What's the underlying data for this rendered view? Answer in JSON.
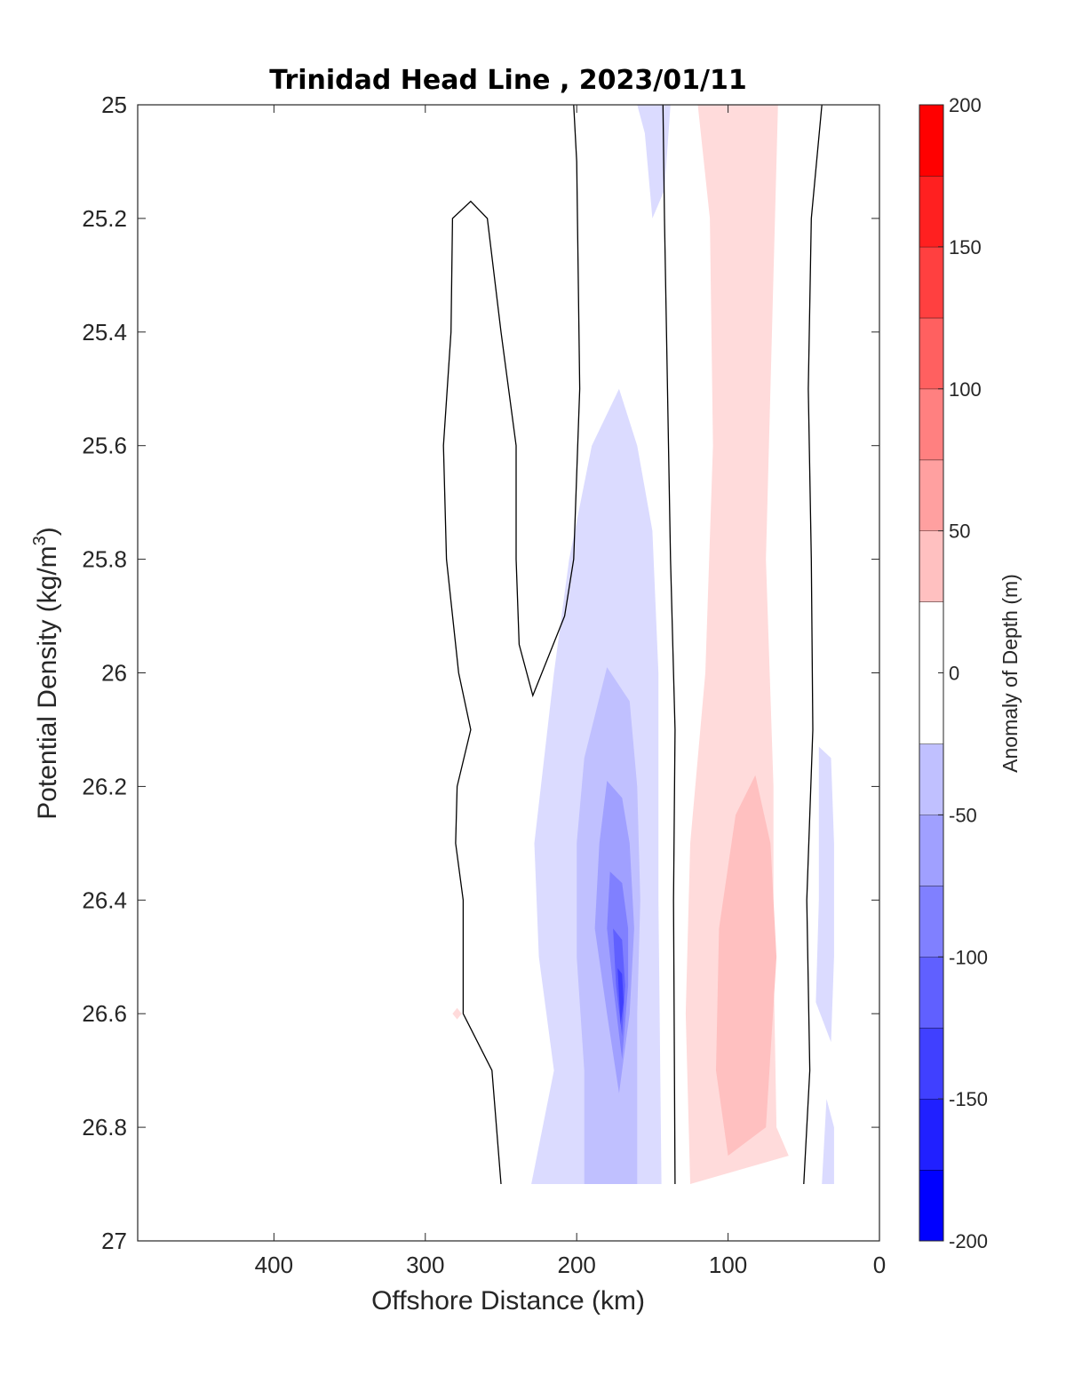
{
  "chart_data": {
    "type": "contour",
    "title": "Trinidad Head Line , 2023/01/11",
    "xlabel": "Offshore Distance (km)",
    "ylabel_main": "Potential Density (kg/m",
    "ylabel_sup": "3",
    "ylabel_close": ")",
    "colorbar_label": "Anomaly of Depth (m)",
    "xlim": [
      490,
      0
    ],
    "ylim": [
      25,
      27
    ],
    "x_reversed": true,
    "y_reversed": true,
    "xticks": [
      400,
      300,
      200,
      100,
      0
    ],
    "yticks": [
      25,
      25.2,
      25.4,
      25.6,
      25.8,
      26,
      26.2,
      26.4,
      26.6,
      26.8,
      27
    ],
    "ytick_labels": [
      "25",
      "25.2",
      "25.4",
      "25.6",
      "25.8",
      "26",
      "26.2",
      "26.4",
      "26.6",
      "26.8",
      "27"
    ],
    "colorbar": {
      "levels": [
        -200,
        -175,
        -150,
        -125,
        -100,
        -75,
        -50,
        -25,
        25,
        50,
        75,
        100,
        125,
        150,
        175,
        200
      ],
      "colors": [
        "#0000ff",
        "#2020ff",
        "#4040ff",
        "#6060ff",
        "#8080ff",
        "#a0a0ff",
        "#c0c0ff",
        "#dbdbff",
        "#ffffff",
        "#ffdbdb",
        "#ffc0c0",
        "#ffa0a0",
        "#ff8080",
        "#ff6060",
        "#ff4040",
        "#ff2020",
        "#ff0000"
      ],
      "band_edges": [
        -200,
        -175,
        -150,
        -125,
        -100,
        -75,
        -50,
        -25,
        25,
        50,
        75,
        100,
        125,
        150,
        175,
        200
      ],
      "ticks": [
        200,
        150,
        100,
        50,
        0,
        -50,
        -100,
        -150,
        -200
      ],
      "tick_labels": [
        "200",
        "150",
        "100",
        "50",
        "0",
        "-50",
        "-100",
        "-150",
        "-200"
      ]
    },
    "filled_regions": [
      {
        "level": -25,
        "color": "#dbdbff",
        "points": [
          [
            160,
            25
          ],
          [
            138,
            25
          ],
          [
            142,
            25.15
          ],
          [
            150,
            25.2
          ],
          [
            155,
            25.05
          ]
        ]
      },
      {
        "level": -25,
        "color": "#dbdbff",
        "points": [
          [
            172,
            25.5
          ],
          [
            160,
            25.6
          ],
          [
            150,
            25.75
          ],
          [
            146,
            26.0
          ],
          [
            146,
            26.4
          ],
          [
            144,
            26.9
          ],
          [
            230,
            26.9
          ],
          [
            215,
            26.7
          ],
          [
            225,
            26.5
          ],
          [
            228,
            26.3
          ],
          [
            215,
            26.0
          ],
          [
            205,
            25.8
          ],
          [
            190,
            25.6
          ]
        ]
      },
      {
        "level": -25,
        "color": "#dbdbff",
        "points": [
          [
            40,
            26.13
          ],
          [
            32,
            26.15
          ],
          [
            30,
            26.3
          ],
          [
            30,
            26.5
          ],
          [
            32,
            26.65
          ],
          [
            42,
            26.58
          ],
          [
            40,
            26.4
          ]
        ]
      },
      {
        "level": -25,
        "color": "#dbdbff",
        "points": [
          [
            35,
            26.75
          ],
          [
            30,
            26.8
          ],
          [
            30,
            26.9
          ],
          [
            38,
            26.9
          ]
        ]
      },
      {
        "level": -50,
        "color": "#c0c0ff",
        "points": [
          [
            180,
            25.99
          ],
          [
            165,
            26.05
          ],
          [
            160,
            26.2
          ],
          [
            158,
            26.4
          ],
          [
            160,
            26.6
          ],
          [
            160,
            26.9
          ],
          [
            195,
            26.9
          ],
          [
            195,
            26.7
          ],
          [
            200,
            26.5
          ],
          [
            200,
            26.3
          ],
          [
            195,
            26.15
          ]
        ]
      },
      {
        "level": -75,
        "color": "#a0a0ff",
        "points": [
          [
            180,
            26.19
          ],
          [
            170,
            26.22
          ],
          [
            165,
            26.3
          ],
          [
            162,
            26.45
          ],
          [
            165,
            26.6
          ],
          [
            172,
            26.74
          ],
          [
            180,
            26.6
          ],
          [
            188,
            26.45
          ],
          [
            185,
            26.3
          ]
        ]
      },
      {
        "level": -100,
        "color": "#8080ff",
        "points": [
          [
            178,
            26.35
          ],
          [
            170,
            26.37
          ],
          [
            166,
            26.45
          ],
          [
            166,
            26.55
          ],
          [
            170,
            26.68
          ],
          [
            176,
            26.55
          ],
          [
            180,
            26.45
          ]
        ]
      },
      {
        "level": -125,
        "color": "#6060ff",
        "points": [
          [
            176,
            26.45
          ],
          [
            170,
            26.47
          ],
          [
            168,
            26.55
          ],
          [
            170,
            26.64
          ],
          [
            174,
            26.55
          ]
        ]
      },
      {
        "level": -150,
        "color": "#4040ff",
        "points": [
          [
            173,
            26.52
          ],
          [
            170,
            26.53
          ],
          [
            169,
            26.58
          ],
          [
            171,
            26.62
          ]
        ]
      },
      {
        "level": 25,
        "color": "#ffdbdb",
        "points": [
          [
            120,
            25
          ],
          [
            67,
            25
          ],
          [
            70,
            25.3
          ],
          [
            75,
            25.8
          ],
          [
            70,
            26.2
          ],
          [
            70,
            26.5
          ],
          [
            68,
            26.8
          ],
          [
            60,
            26.85
          ],
          [
            125,
            26.9
          ],
          [
            128,
            26.6
          ],
          [
            125,
            26.3
          ],
          [
            115,
            26.0
          ],
          [
            110,
            25.6
          ],
          [
            112,
            25.2
          ]
        ]
      },
      {
        "level": 25,
        "color": "#ffdbdb",
        "points": [
          [
            282,
            26.6
          ],
          [
            279,
            26.59
          ],
          [
            276,
            26.6
          ],
          [
            279,
            26.61
          ]
        ]
      },
      {
        "level": 50,
        "color": "#ffc0c0",
        "points": [
          [
            82,
            26.18
          ],
          [
            95,
            26.25
          ],
          [
            106,
            26.45
          ],
          [
            108,
            26.7
          ],
          [
            100,
            26.85
          ],
          [
            75,
            26.8
          ],
          [
            68,
            26.5
          ],
          [
            72,
            26.3
          ]
        ]
      }
    ],
    "contour_lines": [
      {
        "level": 0,
        "points": [
          [
            202,
            25
          ],
          [
            200,
            25.1
          ],
          [
            198,
            25.5
          ],
          [
            202,
            25.8
          ],
          [
            208,
            25.9
          ],
          [
            229,
            26.04
          ],
          [
            238,
            25.95
          ],
          [
            240,
            25.8
          ],
          [
            240,
            25.6
          ],
          [
            250,
            25.4
          ],
          [
            259,
            25.2
          ],
          [
            270,
            25.17
          ],
          [
            282,
            25.2
          ],
          [
            283,
            25.4
          ],
          [
            288,
            25.6
          ],
          [
            286,
            25.8
          ],
          [
            278,
            26.0
          ],
          [
            270,
            26.1
          ],
          [
            279,
            26.2
          ],
          [
            280,
            26.3
          ],
          [
            275,
            26.4
          ],
          [
            275,
            26.6
          ],
          [
            256,
            26.7
          ],
          [
            250,
            26.9
          ]
        ]
      },
      {
        "level": 0,
        "points": [
          [
            143,
            25
          ],
          [
            142,
            25.2
          ],
          [
            140,
            25.5
          ],
          [
            138,
            25.8
          ],
          [
            135,
            26.1
          ],
          [
            136,
            26.4
          ],
          [
            135,
            26.9
          ]
        ]
      },
      {
        "level": 0,
        "points": [
          [
            38,
            25
          ],
          [
            45,
            25.2
          ],
          [
            47,
            25.5
          ],
          [
            45,
            25.8
          ],
          [
            44,
            26.1
          ],
          [
            48,
            26.4
          ],
          [
            46,
            26.7
          ],
          [
            50,
            26.9
          ]
        ]
      }
    ]
  }
}
